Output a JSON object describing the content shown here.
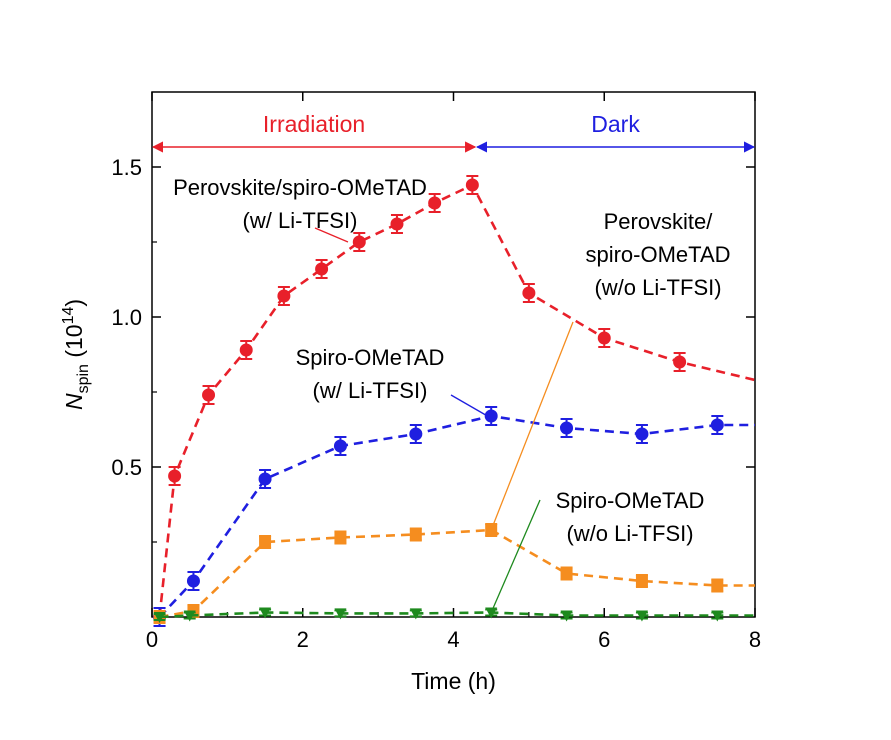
{
  "chart_data": {
    "type": "line",
    "xlabel": "Time (h)",
    "ylabel": {
      "symbol": "N",
      "subscript": "spin",
      "unit": "(10",
      "exponent": "14",
      "close": ")"
    },
    "xlim": [
      0,
      8
    ],
    "ylim": [
      0,
      1.75
    ],
    "x_ticks": [
      0,
      2,
      4,
      6,
      8
    ],
    "x_tick_labels": [
      "0",
      "2",
      "4",
      "6",
      "8"
    ],
    "y_ticks": [
      0.5,
      1.0,
      1.5
    ],
    "y_tick_labels": [
      "0.5",
      "1.0",
      "1.5"
    ],
    "grid": false,
    "regions": [
      {
        "label": "Irradiation",
        "x_start": 0,
        "x_end": 4.3,
        "color": "#e8202a"
      },
      {
        "label": "Dark",
        "x_start": 4.3,
        "x_end": 8,
        "color": "#1f1fe0"
      }
    ],
    "series": [
      {
        "color": "#e8202a",
        "marker": "circle",
        "x": [
          0.1,
          0.3,
          0.75,
          1.25,
          1.75,
          2.25,
          2.75,
          3.25,
          3.75,
          4.25,
          5.0,
          6.0,
          7.0,
          8.0
        ],
        "y": [
          0.0,
          0.47,
          0.74,
          0.89,
          1.07,
          1.16,
          1.25,
          1.31,
          1.38,
          1.44,
          1.08,
          0.93,
          0.85,
          0.79
        ],
        "err": [
          0.03,
          0.03,
          0.03,
          0.03,
          0.03,
          0.03,
          0.03,
          0.03,
          0.03,
          0.03,
          0.03,
          0.03,
          0.03,
          0.03
        ]
      },
      {
        "color": "#1f1fe0",
        "marker": "circle",
        "x": [
          0.1,
          0.55,
          1.5,
          2.5,
          3.5,
          4.5,
          5.5,
          6.5,
          7.5,
          8.0
        ],
        "y": [
          0.0,
          0.12,
          0.46,
          0.57,
          0.61,
          0.67,
          0.63,
          0.61,
          0.64,
          0.64
        ],
        "err": [
          0.03,
          0.03,
          0.03,
          0.03,
          0.03,
          0.03,
          0.03,
          0.03,
          0.03,
          0.0
        ]
      },
      {
        "color": "#f58d1f",
        "marker": "square",
        "x": [
          0.1,
          0.55,
          1.5,
          2.5,
          3.5,
          4.5,
          5.5,
          6.5,
          7.5,
          8.0
        ],
        "y": [
          0.0,
          0.02,
          0.25,
          0.265,
          0.275,
          0.29,
          0.145,
          0.12,
          0.105,
          0.105
        ],
        "err": [
          0.02,
          0.02,
          0.02,
          0.02,
          0.02,
          0.02,
          0.02,
          0.02,
          0.02,
          0.0
        ]
      },
      {
        "color": "#1e8a1e",
        "marker": "triangle",
        "x": [
          0.1,
          0.5,
          1.5,
          2.5,
          3.5,
          4.5,
          5.5,
          6.5,
          7.5,
          8.0
        ],
        "y": [
          0.0,
          0.005,
          0.015,
          0.012,
          0.012,
          0.015,
          0.005,
          0.005,
          0.005,
          0.005
        ],
        "err": [
          0.01,
          0.01,
          0.01,
          0.01,
          0.01,
          0.01,
          0.01,
          0.01,
          0.01,
          0.0
        ]
      }
    ],
    "annotations": [
      {
        "lines": [
          "Perovskite/spiro-OMeTAD",
          "(w/ Li-TFSI)"
        ],
        "pointer_color": "#e8202a",
        "target": [
          2.6,
          1.25
        ]
      },
      {
        "lines": [
          "Perovskite/",
          "spiro-OMeTAD",
          "(w/o Li-TFSI)"
        ],
        "pointer_color": "#f58d1f",
        "target": [
          4.5,
          0.29
        ]
      },
      {
        "lines": [
          "Spiro-OMeTAD",
          "(w/ Li-TFSI)"
        ],
        "pointer_color": "#1f1fe0",
        "target": [
          4.45,
          0.67
        ]
      },
      {
        "lines": [
          "Spiro-OMeTAD",
          "(w/o Li-TFSI)"
        ],
        "pointer_color": "#1e8a1e",
        "target": [
          4.5,
          0.015
        ]
      }
    ]
  }
}
